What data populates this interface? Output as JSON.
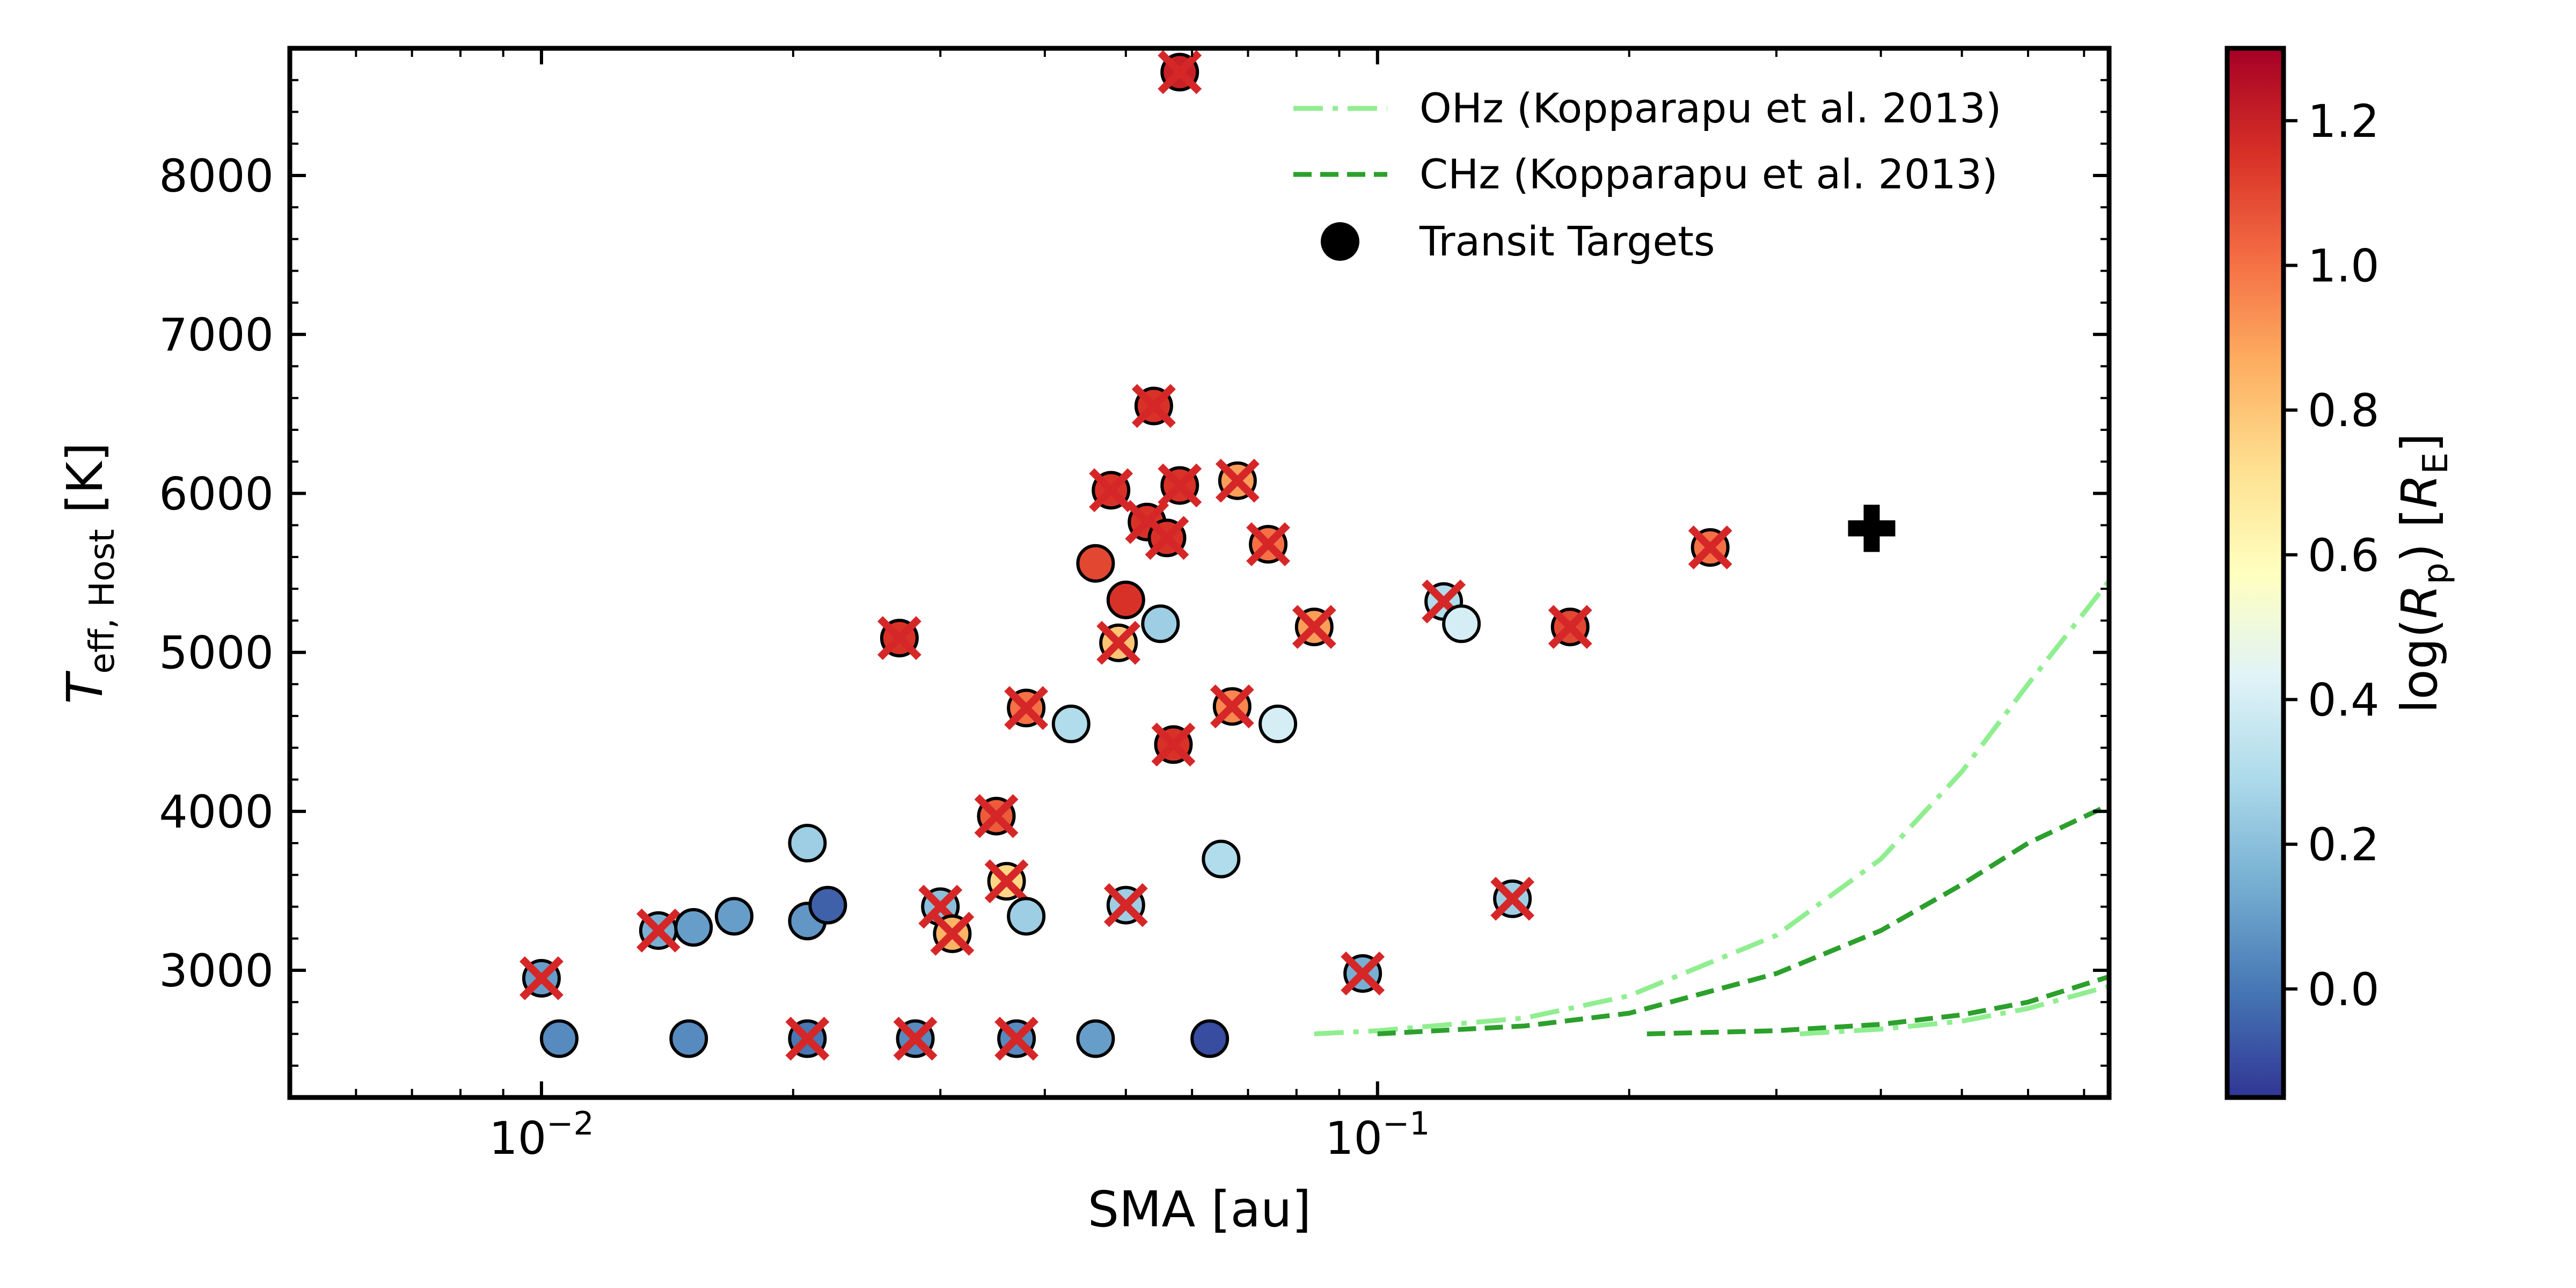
{
  "chart_data": {
    "type": "scatter",
    "xlabel": "SMA [au]",
    "ylabel_main": "T",
    "ylabel_sub": "eff, Host",
    "ylabel_unit": " [K]",
    "x_scale": "log",
    "xlim": [
      0.005,
      0.75
    ],
    "ylim": [
      2200,
      8800
    ],
    "x_ticks": [
      {
        "value": 0.01,
        "base": "10",
        "exp": "−2"
      },
      {
        "value": 0.1,
        "base": "10",
        "exp": "−1"
      }
    ],
    "y_ticks": [
      3000,
      4000,
      5000,
      6000,
      7000,
      8000
    ],
    "colorbar": {
      "label_pre": "log(",
      "label_var": "R",
      "label_sub": "p",
      "label_mid": ") [",
      "label_unit": "R",
      "label_unit_sub": "E",
      "label_post": "]",
      "range": [
        -0.15,
        1.3
      ],
      "ticks": [
        "0.0",
        "0.2",
        "0.4",
        "0.6",
        "0.8",
        "1.0",
        "1.2"
      ],
      "colormap": "RdYlBu_r"
    },
    "legend": {
      "placement": "top-right",
      "entries": [
        {
          "label": "OHz (Kopparapu et al. 2013)",
          "style": "dashdot",
          "color": "#90ee90"
        },
        {
          "label": "CHz (Kopparapu et al. 2013)",
          "style": "dashed",
          "color": "#2ca02c"
        },
        {
          "label": "Transit Targets",
          "style": "marker",
          "color": "#000000"
        }
      ]
    },
    "series": [
      {
        "label": "Transit Targets",
        "points": [
          {
            "x": 0.01,
            "y": 2950,
            "c": 0.1,
            "crossed": true
          },
          {
            "x": 0.0105,
            "y": 2570,
            "c": 0.05,
            "crossed": false
          },
          {
            "x": 0.0138,
            "y": 3250,
            "c": 0.15,
            "crossed": true
          },
          {
            "x": 0.015,
            "y": 2570,
            "c": 0.05,
            "crossed": false
          },
          {
            "x": 0.0152,
            "y": 3270,
            "c": 0.1,
            "crossed": false
          },
          {
            "x": 0.017,
            "y": 3340,
            "c": 0.1,
            "crossed": false
          },
          {
            "x": 0.0208,
            "y": 2570,
            "c": 0.0,
            "crossed": true
          },
          {
            "x": 0.0208,
            "y": 3800,
            "c": 0.25,
            "crossed": false
          },
          {
            "x": 0.0208,
            "y": 3310,
            "c": 0.08,
            "crossed": false
          },
          {
            "x": 0.022,
            "y": 3410,
            "c": -0.05,
            "crossed": false
          },
          {
            "x": 0.0268,
            "y": 5090,
            "c": 1.15,
            "crossed": true
          },
          {
            "x": 0.028,
            "y": 2570,
            "c": 0.05,
            "crossed": true
          },
          {
            "x": 0.03,
            "y": 3400,
            "c": 0.2,
            "crossed": true
          },
          {
            "x": 0.031,
            "y": 3230,
            "c": 0.85,
            "crossed": true
          },
          {
            "x": 0.035,
            "y": 3970,
            "c": 1.05,
            "crossed": true
          },
          {
            "x": 0.036,
            "y": 3560,
            "c": 0.75,
            "crossed": true
          },
          {
            "x": 0.037,
            "y": 2570,
            "c": 0.05,
            "crossed": true
          },
          {
            "x": 0.038,
            "y": 4650,
            "c": 1.0,
            "crossed": true
          },
          {
            "x": 0.038,
            "y": 3340,
            "c": 0.25,
            "crossed": false
          },
          {
            "x": 0.043,
            "y": 4550,
            "c": 0.3,
            "crossed": false
          },
          {
            "x": 0.046,
            "y": 2570,
            "c": 0.1,
            "crossed": false
          },
          {
            "x": 0.046,
            "y": 5560,
            "c": 1.1,
            "crossed": false
          },
          {
            "x": 0.048,
            "y": 6020,
            "c": 1.15,
            "crossed": true
          },
          {
            "x": 0.049,
            "y": 5060,
            "c": 0.8,
            "crossed": true
          },
          {
            "x": 0.05,
            "y": 5330,
            "c": 1.15,
            "crossed": false
          },
          {
            "x": 0.05,
            "y": 3410,
            "c": 0.25,
            "crossed": true
          },
          {
            "x": 0.053,
            "y": 5820,
            "c": 1.15,
            "crossed": true
          },
          {
            "x": 0.054,
            "y": 6550,
            "c": 1.15,
            "crossed": true
          },
          {
            "x": 0.055,
            "y": 5180,
            "c": 0.25,
            "crossed": false
          },
          {
            "x": 0.056,
            "y": 5720,
            "c": 1.15,
            "crossed": true
          },
          {
            "x": 0.057,
            "y": 4420,
            "c": 1.15,
            "crossed": true
          },
          {
            "x": 0.058,
            "y": 6050,
            "c": 1.15,
            "crossed": true
          },
          {
            "x": 0.058,
            "y": 8650,
            "c": 1.2,
            "crossed": true
          },
          {
            "x": 0.063,
            "y": 2570,
            "c": -0.1,
            "crossed": false
          },
          {
            "x": 0.065,
            "y": 3700,
            "c": 0.3,
            "crossed": false
          },
          {
            "x": 0.067,
            "y": 4660,
            "c": 0.95,
            "crossed": true
          },
          {
            "x": 0.068,
            "y": 6080,
            "c": 0.9,
            "crossed": true
          },
          {
            "x": 0.074,
            "y": 5680,
            "c": 1.0,
            "crossed": true
          },
          {
            "x": 0.076,
            "y": 4550,
            "c": 0.4,
            "crossed": false
          },
          {
            "x": 0.084,
            "y": 5160,
            "c": 0.9,
            "crossed": true
          },
          {
            "x": 0.096,
            "y": 2980,
            "c": 0.15,
            "crossed": true
          },
          {
            "x": 0.12,
            "y": 5320,
            "c": 0.3,
            "crossed": true
          },
          {
            "x": 0.126,
            "y": 5180,
            "c": 0.4,
            "crossed": false
          },
          {
            "x": 0.145,
            "y": 3450,
            "c": 0.25,
            "crossed": true
          },
          {
            "x": 0.17,
            "y": 5160,
            "c": 1.1,
            "crossed": true
          },
          {
            "x": 0.25,
            "y": 5660,
            "c": 1.0,
            "crossed": true
          }
        ]
      }
    ],
    "special_marker": {
      "type": "plus",
      "x": 0.39,
      "y": 5780
    },
    "hz_curves": [
      {
        "name": "OHz-inner",
        "style": "dashdot",
        "color": "#90ee90",
        "points": [
          [
            0.084,
            2600
          ],
          [
            0.1,
            2620
          ],
          [
            0.15,
            2700
          ],
          [
            0.2,
            2840
          ],
          [
            0.3,
            3220
          ],
          [
            0.4,
            3700
          ],
          [
            0.5,
            4250
          ],
          [
            0.6,
            4800
          ],
          [
            0.75,
            5450
          ]
        ]
      },
      {
        "name": "CHz-inner",
        "style": "dashed",
        "color": "#2ca02c",
        "points": [
          [
            0.1,
            2600
          ],
          [
            0.15,
            2650
          ],
          [
            0.2,
            2730
          ],
          [
            0.3,
            2980
          ],
          [
            0.4,
            3250
          ],
          [
            0.5,
            3540
          ],
          [
            0.6,
            3800
          ],
          [
            0.75,
            4040
          ]
        ]
      },
      {
        "name": "CHz-outer",
        "style": "dashed",
        "color": "#2ca02c",
        "points": [
          [
            0.21,
            2600
          ],
          [
            0.3,
            2620
          ],
          [
            0.4,
            2660
          ],
          [
            0.5,
            2720
          ],
          [
            0.6,
            2800
          ],
          [
            0.75,
            2960
          ]
        ]
      },
      {
        "name": "OHz-outer",
        "style": "dashdot",
        "color": "#90ee90",
        "points": [
          [
            0.32,
            2600
          ],
          [
            0.4,
            2630
          ],
          [
            0.5,
            2680
          ],
          [
            0.6,
            2760
          ],
          [
            0.75,
            2900
          ]
        ]
      }
    ]
  }
}
